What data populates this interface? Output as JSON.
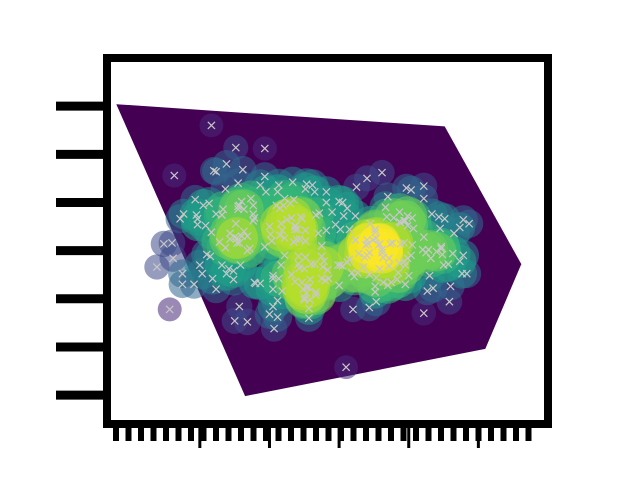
{
  "chart_data": {
    "type": "scatter",
    "title": "",
    "xlabel": "",
    "ylabel": "",
    "xlim": [
      -0.2,
      3.6
    ],
    "ylim": [
      -1.8,
      2.0
    ],
    "x_ticks_major": [
      0.6,
      1.2,
      1.8,
      2.4,
      3.0
    ],
    "y_ticks_major": [
      -1.5,
      -1.0,
      -0.5,
      0.0,
      0.5,
      1.0,
      1.5
    ],
    "grid": false,
    "legend": "none",
    "hull_x": [
      2.71,
      3.37,
      3.06,
      0.99,
      -0.12
    ],
    "hull_y": [
      1.29,
      -0.14,
      -1.02,
      -1.51,
      1.52
    ],
    "points_x": [
      0.7,
      0.91,
      1.16,
      0.83,
      0.97,
      0.74,
      0.38,
      0.58,
      1.32,
      0.91,
      1.29,
      0.29,
      0.23,
      1.51,
      1.93,
      1.66,
      1.6,
      1.5,
      1.4,
      1.87,
      1.69,
      1.69,
      1.06,
      0.37,
      0.86,
      0.96,
      0.83,
      0.45,
      1.89,
      1.69,
      1.77,
      1.3,
      2.87,
      0.68,
      2.04,
      1.89,
      2.78,
      0.98,
      1.84,
      1.46,
      2.39,
      0.93,
      1.59,
      0.63,
      2.71,
      2.17,
      1.41,
      1.16,
      2.06,
      2.23,
      1.06,
      1.35,
      2.42,
      1.26,
      1.63,
      2.12,
      2.37,
      0.55,
      1.86,
      2.61,
      1.92,
      2.32,
      1.24,
      1.79,
      1.74,
      1.23,
      2.32,
      2.87,
      2.38,
      1.27,
      1.04,
      0.94,
      1.12,
      2.39,
      1.52,
      2.25,
      0.71,
      2.06,
      0.92,
      1.6,
      1.31,
      1.08,
      0.9,
      0.9,
      2.04,
      2.27,
      2.15,
      2.9,
      2.52,
      1.42,
      1.65,
      1.52,
      1.62,
      2.02,
      1.48,
      1.46,
      2.11,
      1.71,
      1.5,
      2.37,
      2.67,
      1.38,
      0.94,
      1.23,
      1.17,
      1.22,
      1.52,
      2.31,
      1.01,
      2.53,
      2.03,
      2.57,
      0.82,
      0.92,
      2.4,
      1.54,
      2.36,
      0.89,
      0.65,
      2.84,
      1.41,
      1.06,
      1.59,
      0.62,
      1.5,
      2.76,
      1.81,
      1.27,
      2.39,
      0.56,
      1.51,
      1.83,
      1.57,
      0.36,
      1.45,
      1.33,
      1.12,
      2.68,
      1.42,
      2.6,
      1.2,
      0.96,
      2.2,
      1.83,
      1.01,
      1.42,
      2.92,
      0.45,
      2.18,
      0.7,
      2.11,
      2.74,
      1.23,
      1.42,
      1.01,
      0.74,
      2.43,
      1.8,
      1.54,
      1.55,
      1.6,
      2.79,
      0.46,
      0.82,
      1.43,
      1.16,
      0.89,
      2.37,
      1.2,
      2.59,
      1.67,
      2.44,
      2.64,
      1.54,
      1.33,
      1.96,
      2.43,
      2.04,
      2.3,
      0.98,
      1.03,
      2.33,
      1.56,
      1.45,
      2.01,
      1.23,
      2.22,
      2.09,
      0.58,
      0.34,
      2.33,
      1.47,
      2.56,
      2.32,
      1.94,
      1.31,
      2.53,
      0.69,
      2.55,
      0.79,
      0.57,
      1.65,
      1.51,
      0.77,
      2.69,
      1.28,
      2.22,
      2.06,
      2.58,
      1.8,
      2.17,
      1.87,
      0.94,
      2.07,
      0.86,
      2.12,
      1.07,
      2.53,
      2.68,
      2.15,
      2.36,
      2.18,
      1.7,
      1.68,
      0.43,
      2.7,
      1.94,
      0.93,
      1.29,
      2.86,
      2.36,
      1.21,
      0.72,
      2.75,
      1.3,
      2.24,
      2.84,
      0.85,
      2.53,
      0.79,
      0.93,
      0.66,
      1.95,
      2.23,
      1.44,
      1.48,
      1.81,
      2.11,
      1.91,
      2.26,
      1.49,
      1.33,
      2.05,
      2.66,
      0.6,
      2.42,
      1.27,
      2.12,
      0.95,
      1.55,
      0.74,
      1.39,
      1.39,
      1.65,
      2.21,
      1.51,
      1.97,
      2.11,
      1.07,
      2.14,
      1.28,
      0.8,
      2.17
    ],
    "points_y": [
      1.3,
      1.07,
      1.06,
      0.9,
      0.84,
      0.82,
      0.78,
      0.33,
      0.47,
      0.28,
      0.16,
      0.07,
      -0.17,
      -0.07,
      -0.27,
      -0.17,
      -0.43,
      -0.49,
      0.71,
      0.44,
      0.61,
      0.5,
      0.38,
      -0.08,
      0.12,
      0.51,
      -0.24,
      -0.35,
      -0.09,
      0.21,
      0.27,
      0.28,
      0.32,
      0.49,
      0.75,
      0.22,
      -0.03,
      0.2,
      0.36,
      0.12,
      0.36,
      0.7,
      0.61,
      0.47,
      0.33,
      0.01,
      0.09,
      0.04,
      -0.02,
      -0.08,
      0.31,
      0.32,
      -0.05,
      0.47,
      0.39,
      -0.53,
      -0.15,
      -0.35,
      -1.21,
      -0.39,
      -0.61,
      0.3,
      -0.81,
      -0.15,
      0.4,
      -0.58,
      -0.13,
      -0.05,
      0.65,
      0.61,
      0.54,
      0.47,
      0.68,
      0.26,
      0.69,
      -0.33,
      -0.29,
      -0.59,
      0.13,
      0.37,
      -0.42,
      -0.34,
      -0.73,
      0.14,
      -0.05,
      0.34,
      0.07,
      -0.24,
      0.01,
      0.22,
      0.05,
      -0.38,
      0.18,
      -0.07,
      -0.33,
      -0.18,
      -0.43,
      -0.29,
      -0.51,
      0.31,
      0.23,
      0.49,
      0.08,
      -0.26,
      0.61,
      0.1,
      -0.44,
      -0.23,
      0.15,
      0.14,
      0.06,
      0.01,
      0.64,
      0.08,
      -0.26,
      -0.6,
      0.31,
      -0.3,
      0.26,
      0.24,
      0.53,
      0.47,
      -0.14,
      -0.24,
      -0.19,
      -0.37,
      -0.15,
      -0.52,
      -0.08,
      0.53,
      0.21,
      0.5,
      0.68,
      0.08,
      -0.14,
      0.54,
      -0.34,
      0.02,
      0.25,
      0.38,
      0.25,
      0.15,
      0.45,
      -0.16,
      -0.74,
      0.26,
      0.28,
      -0.24,
      -0.33,
      0.19,
      -0.37,
      -0.14,
      -0.4,
      -0.32,
      0.0,
      0.38,
      0.06,
      -0.36,
      -0.7,
      -0.3,
      -0.46,
      0.18,
      0.38,
      0.03,
      0.12,
      0.77,
      -0.21,
      -0.35,
      -0.66,
      -0.08,
      -0.11,
      0.23,
      -0.01,
      -0.38,
      -0.05,
      -0.23,
      0.34,
      0.11,
      -0.3,
      0.43,
      0.02,
      0.07,
      -0.14,
      -0.06,
      -0.17,
      -0.29,
      -0.36,
      0.11,
      0.27,
      -0.61,
      0.29,
      0.35,
      -0.42,
      0.4,
      0.11,
      0.21,
      0.67,
      -0.06,
      -0.02,
      0.37,
      0.37,
      -0.29,
      0.1,
      0.09,
      -0.04,
      -0.29,
      0.56,
      -0.25,
      -0.26,
      0.51,
      0.81,
      -0.12,
      -0.58,
      0.28,
      0.18,
      -0.28,
      -0.33,
      0.54,
      0.04,
      -0.19,
      0.08,
      -0.07,
      -0.2,
      -0.31,
      0.33,
      -0.15,
      0.36,
      0.46,
      0.44,
      -0.24,
      -0.11,
      0.17,
      0.83,
      -0.53,
      -0.15,
      0.07,
      -0.11,
      -0.19,
      -0.65,
      -0.15,
      0.43,
      -0.04,
      0.66,
      -0.16,
      0.22,
      0.33,
      0.22,
      0.22,
      -0.23,
      0.08,
      -0.4,
      0.13,
      0.07,
      0.35,
      -0.15,
      0.63,
      -0.69,
      0.13,
      -0.15,
      -0.51,
      -0.4,
      -0.25,
      0.34,
      -0.06,
      0.35,
      0.64,
      -0.03,
      0.19,
      0.34,
      0.06,
      0.68,
      0.43,
      -0.02,
      0.02,
      -0.23,
      0.01,
      0.19,
      0.46,
      0.03,
      -0.29,
      -0.39
    ],
    "colors": {
      "field": [
        "#440154",
        "#482878",
        "#3e4a89",
        "#31688e",
        "#26828e",
        "#1f9e89",
        "#35b779",
        "#6ece58",
        "#b5de2b",
        "#fde725"
      ],
      "marker": "#c8c8c8",
      "frame": "#000000",
      "background": "#ffffff"
    }
  }
}
